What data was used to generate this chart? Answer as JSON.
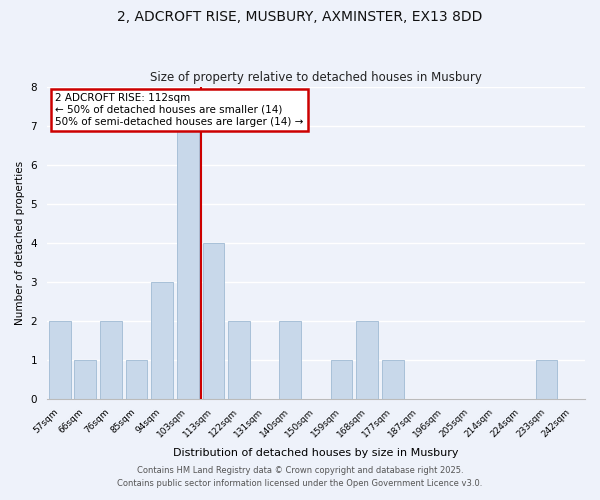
{
  "title": "2, ADCROFT RISE, MUSBURY, AXMINSTER, EX13 8DD",
  "subtitle": "Size of property relative to detached houses in Musbury",
  "xlabel": "Distribution of detached houses by size in Musbury",
  "ylabel": "Number of detached properties",
  "categories": [
    "57sqm",
    "66sqm",
    "76sqm",
    "85sqm",
    "94sqm",
    "103sqm",
    "113sqm",
    "122sqm",
    "131sqm",
    "140sqm",
    "150sqm",
    "159sqm",
    "168sqm",
    "177sqm",
    "187sqm",
    "196sqm",
    "205sqm",
    "214sqm",
    "224sqm",
    "233sqm",
    "242sqm"
  ],
  "values": [
    2,
    1,
    2,
    1,
    3,
    7,
    4,
    2,
    0,
    2,
    0,
    1,
    2,
    1,
    0,
    0,
    0,
    0,
    0,
    1,
    0
  ],
  "bar_color": "#c8d8ea",
  "bar_edgecolor": "#a8c0d8",
  "vline_x_index": 6,
  "vline_color": "#cc0000",
  "annotation_title": "2 ADCROFT RISE: 112sqm",
  "annotation_line1": "← 50% of detached houses are smaller (14)",
  "annotation_line2": "50% of semi-detached houses are larger (14) →",
  "annotation_box_edgecolor": "#cc0000",
  "ylim": [
    0,
    8
  ],
  "yticks": [
    0,
    1,
    2,
    3,
    4,
    5,
    6,
    7,
    8
  ],
  "bg_color": "#eef2fa",
  "grid_color": "#ffffff",
  "footer1": "Contains HM Land Registry data © Crown copyright and database right 2025.",
  "footer2": "Contains public sector information licensed under the Open Government Licence v3.0."
}
